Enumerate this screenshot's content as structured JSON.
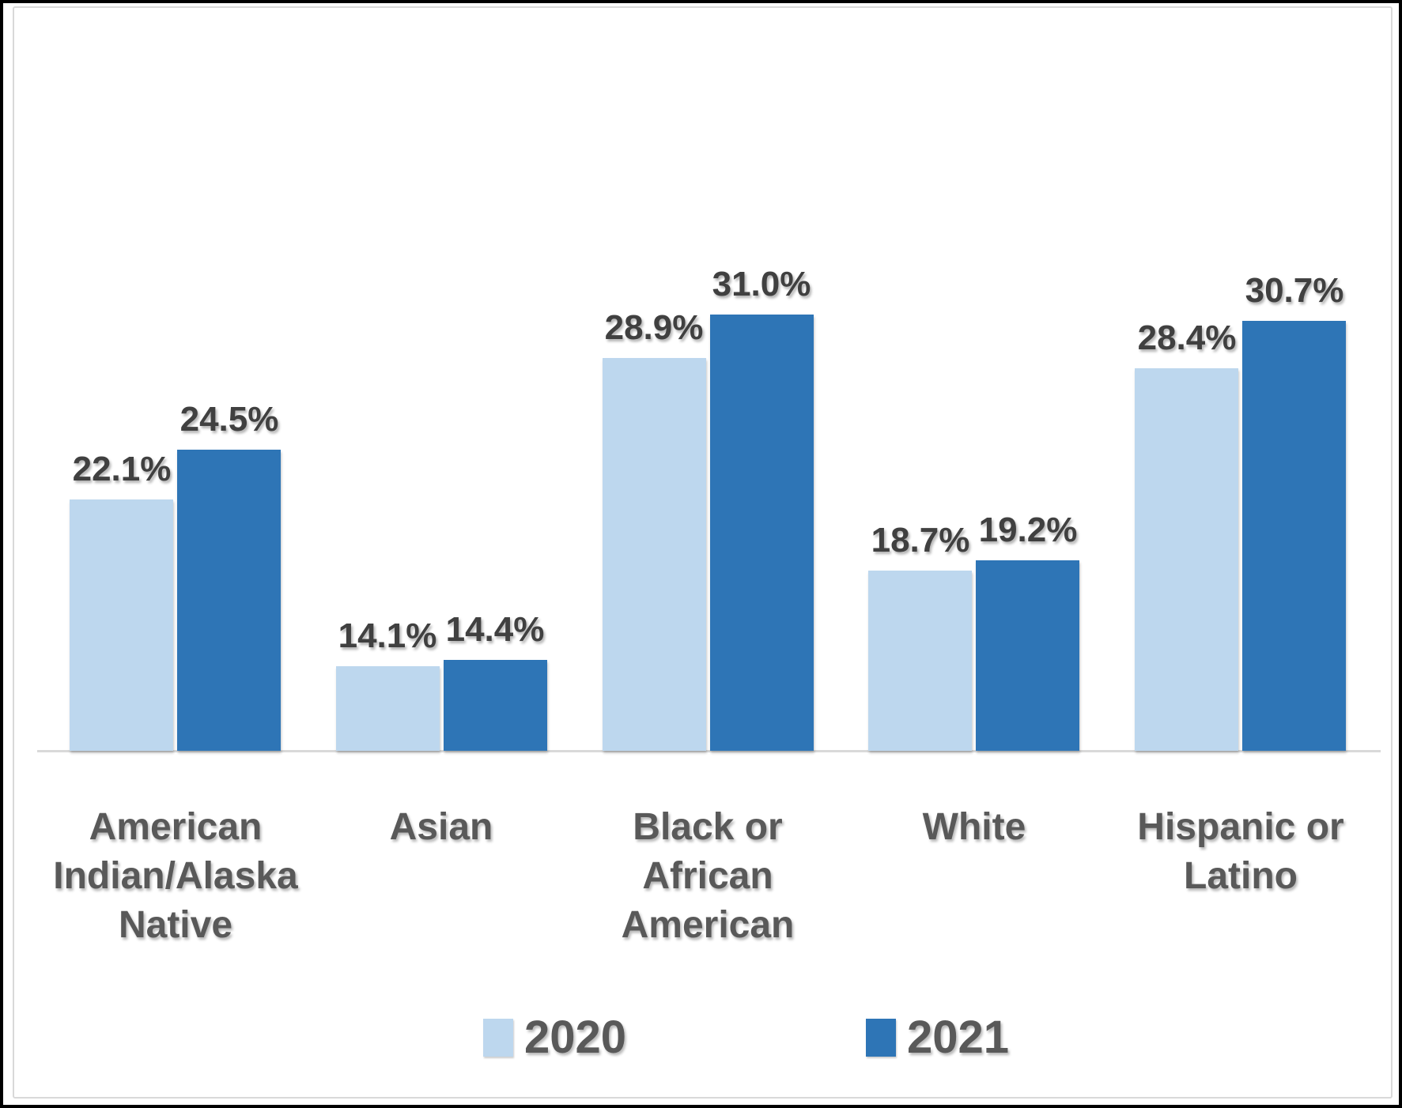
{
  "chart_data": {
    "type": "bar",
    "title": "",
    "xlabel": "",
    "ylabel": "",
    "categories": [
      "American Indian/Alaska Native",
      "Asian",
      "Black or African American",
      "White",
      "Hispanic or Latino"
    ],
    "category_lines": [
      [
        "American",
        "Indian/Alaska",
        "Native"
      ],
      [
        "Asian"
      ],
      [
        "Black or",
        "African",
        "American"
      ],
      [
        "White"
      ],
      [
        "Hispanic or",
        "Latino"
      ]
    ],
    "series": [
      {
        "name": "2020",
        "color": "#BDD7EE",
        "values": [
          22.1,
          14.1,
          28.9,
          18.7,
          28.4
        ],
        "labels": [
          "22.1%",
          "14.1%",
          "28.9%",
          "18.7%",
          "28.4%"
        ]
      },
      {
        "name": "2021",
        "color": "#2E75B6",
        "values": [
          24.5,
          14.4,
          31.0,
          19.2,
          30.7
        ],
        "labels": [
          "24.5%",
          "14.4%",
          "31.0%",
          "19.2%",
          "30.7%"
        ]
      }
    ],
    "axis": {
      "y_min": 10,
      "y_max": 32,
      "gridlines": false,
      "y_axis_visible": false,
      "x_axis_line_visible": true
    },
    "legend": {
      "position": "bottom",
      "entries": [
        "2020",
        "2021"
      ]
    }
  },
  "colors": {
    "series_2020": "#BDD7EE",
    "series_2021": "#2E75B6",
    "value_label": "#404040",
    "category_label": "#595959",
    "legend_label": "#595959",
    "axis_line": "#D9D9D9",
    "inner_frame": "#D9D9D9",
    "outer_border": "#000000",
    "background": "#FFFFFF"
  }
}
